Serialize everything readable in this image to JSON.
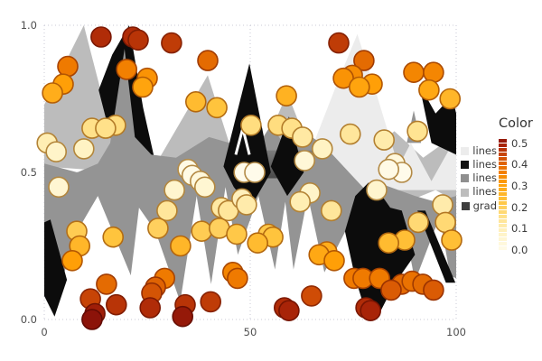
{
  "legend": {
    "title": "Color",
    "entries": [
      {
        "label": "lines",
        "color": "#ececec"
      },
      {
        "label": "lines",
        "color": "#111111"
      },
      {
        "label": "lines",
        "color": "#8f8f8f"
      },
      {
        "label": "lines",
        "color": "#bdbdbd"
      },
      {
        "label": "grad",
        "color": "#3f3f3f"
      }
    ],
    "colorbar": {
      "tick_labels": [
        "0.5",
        "0.4",
        "0.3",
        "0.2",
        "0.1",
        "0.0"
      ],
      "min": 0.0,
      "max": 0.5,
      "segments": 25
    }
  },
  "chart_data": {
    "type": "scatter",
    "title": "",
    "x_axis": {
      "label": "",
      "ticks": [
        0,
        50,
        100
      ],
      "tick_labels": [
        "0",
        "50",
        "100"
      ],
      "range": [
        0,
        100
      ],
      "grid": "dotted"
    },
    "y_axis": {
      "label": "",
      "ticks": [
        1.0,
        0.5,
        0.0
      ],
      "tick_labels": [
        "1.0",
        "0.5",
        "0.0"
      ],
      "range": [
        0,
        1
      ],
      "grid": "dotted"
    },
    "color_scale": {
      "title": "Color",
      "range": [
        0,
        0.5
      ],
      "derived_from": "abs(y-0.5)",
      "stops": [
        [
          0,
          "#fffbea"
        ],
        [
          0.08,
          "#fff3c4"
        ],
        [
          0.15,
          "#ffe18a"
        ],
        [
          0.22,
          "#ffc43d"
        ],
        [
          0.3,
          "#ff9f07"
        ],
        [
          0.36,
          "#ef7a00"
        ],
        [
          0.42,
          "#cf4c06"
        ],
        [
          0.47,
          "#a82408"
        ],
        [
          0.5,
          "#8c1309"
        ]
      ]
    },
    "areas": [
      {
        "name": "lines-silver",
        "fill": "#bcbcbc",
        "polygons": [
          [
            [
              0,
              0.52
            ],
            [
              0,
              0.73
            ],
            [
              9.6,
              1.0
            ],
            [
              17,
              0.6
            ],
            [
              22,
              0.52
            ],
            [
              28,
              0.55
            ],
            [
              39.7,
              0.83
            ],
            [
              46,
              0.55
            ],
            [
              52,
              0.54
            ],
            [
              59,
              0.77
            ],
            [
              66,
              0.52
            ],
            [
              40,
              0.5
            ],
            [
              20,
              0.5
            ]
          ],
          [
            [
              66,
              0.52
            ],
            [
              72,
              0.66
            ],
            [
              78,
              0.56
            ],
            [
              85,
              0.64
            ],
            [
              92,
              0.55
            ],
            [
              100,
              0.63
            ],
            [
              100,
              0.4
            ],
            [
              95,
              0.44
            ],
            [
              88,
              0.4
            ],
            [
              80,
              0.42
            ],
            [
              74,
              0.44
            ],
            [
              70,
              0.47
            ]
          ]
        ]
      },
      {
        "name": "lines-lightest",
        "fill": "#ececec",
        "polygons": [
          [
            [
              61,
              0.44
            ],
            [
              66,
              0.62
            ],
            [
              71,
              0.8
            ],
            [
              76,
              0.97
            ],
            [
              81,
              0.75
            ],
            [
              86,
              0.52
            ],
            [
              89,
              0.6
            ],
            [
              94,
              0.47
            ],
            [
              100,
              0.62
            ],
            [
              100,
              0.44
            ]
          ]
        ]
      },
      {
        "name": "lines-black-back",
        "fill": "#0c0c0c",
        "polygons": [
          [
            [
              13.2,
              0.78
            ],
            [
              16.5,
              0.9
            ],
            [
              20.6,
              1.0
            ],
            [
              24,
              0.72
            ],
            [
              27.5,
              0.5
            ],
            [
              29.5,
              0.38
            ],
            [
              25.5,
              0.4
            ],
            [
              21,
              0.52
            ],
            [
              16.5,
              0.6
            ]
          ]
        ]
      },
      {
        "name": "lines-gray",
        "fill": "#949494",
        "polygons": [
          [
            [
              0,
              0.53
            ],
            [
              8,
              0.5
            ],
            [
              13,
              0.53
            ],
            [
              16,
              0.6
            ],
            [
              19.5,
              0.92
            ],
            [
              22,
              0.62
            ],
            [
              26,
              0.56
            ],
            [
              32,
              0.55
            ],
            [
              40,
              0.62
            ],
            [
              45,
              0.6
            ],
            [
              50,
              0.55
            ],
            [
              55,
              0.66
            ],
            [
              59,
              0.58
            ],
            [
              63,
              0.64
            ],
            [
              67,
              0.6
            ],
            [
              70,
              0.56
            ],
            [
              74,
              0.5
            ],
            [
              78,
              0.44
            ],
            [
              82,
              0.46
            ],
            [
              86,
              0.44
            ],
            [
              90,
              0.42
            ],
            [
              95,
              0.4
            ],
            [
              100,
              0.42
            ],
            [
              100,
              0.14
            ],
            [
              98.5,
              0.15
            ],
            [
              96,
              0.35
            ],
            [
              90,
              0.13
            ],
            [
              87,
              0.35
            ],
            [
              80,
              0.18
            ],
            [
              76,
              0.38
            ],
            [
              68,
              0.16
            ],
            [
              64,
              0.42
            ],
            [
              60.5,
              0.17
            ],
            [
              58.5,
              0.4
            ],
            [
              56,
              0.17
            ],
            [
              52,
              0.42
            ],
            [
              47,
              0.22
            ],
            [
              44,
              0.45
            ],
            [
              40.5,
              0.12
            ],
            [
              37,
              0.42
            ],
            [
              33,
              0.06
            ],
            [
              27,
              0.3
            ],
            [
              23,
              0.38
            ],
            [
              21,
              0.15
            ],
            [
              13,
              0.42
            ],
            [
              8,
              0.3
            ],
            [
              4,
              0.12
            ],
            [
              0,
              0.22
            ]
          ],
          [
            [
              88,
              0.6
            ],
            [
              89.7,
              0.71
            ],
            [
              91.5,
              0.6
            ]
          ]
        ]
      },
      {
        "name": "grad",
        "fill": "gradient",
        "polygons": [
          [
            [
              46,
              0.575
            ],
            [
              66,
              0.575
            ],
            [
              62,
              0.48
            ],
            [
              50,
              0.48
            ]
          ]
        ]
      },
      {
        "name": "lines-black-front",
        "fill": "#0c0c0c",
        "polygons": [
          [
            [
              43.5,
              0.52
            ],
            [
              49.8,
              0.87
            ],
            [
              55,
              0.5
            ],
            [
              50,
              0.38
            ],
            [
              46,
              0.45
            ]
          ],
          [
            [
              55,
              0.52
            ],
            [
              59.4,
              0.69
            ],
            [
              63,
              0.5
            ],
            [
              59,
              0.42
            ]
          ],
          [
            [
              73,
              0.3
            ],
            [
              75.5,
              0.42
            ],
            [
              78.7,
              0.465
            ],
            [
              82,
              0.42
            ],
            [
              84,
              0.38
            ],
            [
              86.8,
              0.37
            ],
            [
              90,
              0.22
            ],
            [
              85,
              0.12
            ],
            [
              80.8,
              0.005
            ],
            [
              78.5,
              0.005
            ],
            [
              75.5,
              0.14
            ]
          ],
          [
            [
              0,
              0.33
            ],
            [
              1.5,
              0.34
            ],
            [
              5.5,
              0.135
            ],
            [
              2.5,
              0.01
            ],
            [
              0,
              0.08
            ]
          ],
          [
            [
              90.6,
              0.37
            ],
            [
              92.5,
              0.37
            ],
            [
              99.8,
              0.125
            ],
            [
              97.5,
              0.125
            ]
          ],
          [
            [
              91,
              0.8
            ],
            [
              95,
              0.7
            ],
            [
              99,
              0.76
            ],
            [
              100,
              0.7
            ],
            [
              100,
              0.56
            ],
            [
              94,
              0.6
            ]
          ]
        ]
      }
    ],
    "annotations": {
      "white_chevron": [
        [
          46.5,
          0.56
        ],
        [
          48.2,
          0.65
        ],
        [
          49.8,
          0.56
        ]
      ]
    },
    "point_radius": 11,
    "points": [
      [
        13.8,
        0.96
      ],
      [
        21.5,
        0.96
      ],
      [
        22.8,
        0.95
      ],
      [
        30.9,
        0.94
      ],
      [
        71.5,
        0.94
      ],
      [
        39.7,
        0.88
      ],
      [
        77.6,
        0.88
      ],
      [
        5.7,
        0.86
      ],
      [
        20.0,
        0.85
      ],
      [
        74.8,
        0.83
      ],
      [
        89.7,
        0.84
      ],
      [
        94.5,
        0.84
      ],
      [
        25.0,
        0.82
      ],
      [
        72.6,
        0.82
      ],
      [
        4.6,
        0.8
      ],
      [
        79.6,
        0.8
      ],
      [
        23.9,
        0.79
      ],
      [
        76.5,
        0.79
      ],
      [
        93.4,
        0.78
      ],
      [
        2.0,
        0.77
      ],
      [
        58.8,
        0.76
      ],
      [
        98.5,
        0.75
      ],
      [
        36.8,
        0.74
      ],
      [
        41.9,
        0.72
      ],
      [
        17.3,
        0.66
      ],
      [
        50.2,
        0.66
      ],
      [
        56.8,
        0.66
      ],
      [
        11.6,
        0.65
      ],
      [
        14.9,
        0.65
      ],
      [
        60.1,
        0.65
      ],
      [
        90.6,
        0.64
      ],
      [
        74.3,
        0.63
      ],
      [
        62.7,
        0.62
      ],
      [
        82.5,
        0.61
      ],
      [
        0.7,
        0.6
      ],
      [
        9.6,
        0.58
      ],
      [
        67.5,
        0.58
      ],
      [
        2.9,
        0.57
      ],
      [
        63.2,
        0.54
      ],
      [
        85.1,
        0.53
      ],
      [
        34.9,
        0.51
      ],
      [
        48.5,
        0.5
      ],
      [
        51.1,
        0.5
      ],
      [
        86.8,
        0.5
      ],
      [
        35.9,
        0.49
      ],
      [
        83.6,
        0.51
      ],
      [
        37.9,
        0.47
      ],
      [
        39.0,
        0.45
      ],
      [
        3.5,
        0.45
      ],
      [
        80.7,
        0.44
      ],
      [
        31.6,
        0.44
      ],
      [
        64.5,
        0.43
      ],
      [
        62.1,
        0.4
      ],
      [
        96.7,
        0.39
      ],
      [
        43.0,
        0.38
      ],
      [
        29.8,
        0.37
      ],
      [
        44.7,
        0.37
      ],
      [
        69.7,
        0.37
      ],
      [
        48.0,
        0.41
      ],
      [
        49.1,
        0.39
      ],
      [
        90.8,
        0.33
      ],
      [
        97.4,
        0.33
      ],
      [
        27.6,
        0.31
      ],
      [
        38.2,
        0.3
      ],
      [
        42.5,
        0.31
      ],
      [
        7.9,
        0.3
      ],
      [
        46.7,
        0.29
      ],
      [
        54.4,
        0.29
      ],
      [
        55.5,
        0.28
      ],
      [
        16.7,
        0.28
      ],
      [
        87.5,
        0.27
      ],
      [
        83.6,
        0.26
      ],
      [
        98.9,
        0.27
      ],
      [
        51.8,
        0.26
      ],
      [
        8.6,
        0.25
      ],
      [
        33.1,
        0.25
      ],
      [
        68.6,
        0.23
      ],
      [
        66.7,
        0.22
      ],
      [
        6.8,
        0.2
      ],
      [
        70.4,
        0.2
      ],
      [
        45.8,
        0.16
      ],
      [
        29.2,
        0.14
      ],
      [
        46.9,
        0.14
      ],
      [
        75.2,
        0.14
      ],
      [
        77.4,
        0.14
      ],
      [
        81.4,
        0.14
      ],
      [
        15.1,
        0.12
      ],
      [
        27.0,
        0.11
      ],
      [
        86.8,
        0.12
      ],
      [
        84.2,
        0.1
      ],
      [
        89.3,
        0.13
      ],
      [
        91.9,
        0.12
      ],
      [
        94.5,
        0.1
      ],
      [
        64.9,
        0.08
      ],
      [
        26.1,
        0.09
      ],
      [
        11.2,
        0.07
      ],
      [
        40.4,
        0.06
      ],
      [
        17.5,
        0.05
      ],
      [
        34.2,
        0.05
      ],
      [
        58.3,
        0.04
      ],
      [
        78.1,
        0.04
      ],
      [
        25.7,
        0.04
      ],
      [
        59.4,
        0.03
      ],
      [
        79.2,
        0.03
      ],
      [
        33.6,
        0.01
      ],
      [
        12.3,
        0.02
      ],
      [
        11.6,
        0.0
      ]
    ]
  }
}
